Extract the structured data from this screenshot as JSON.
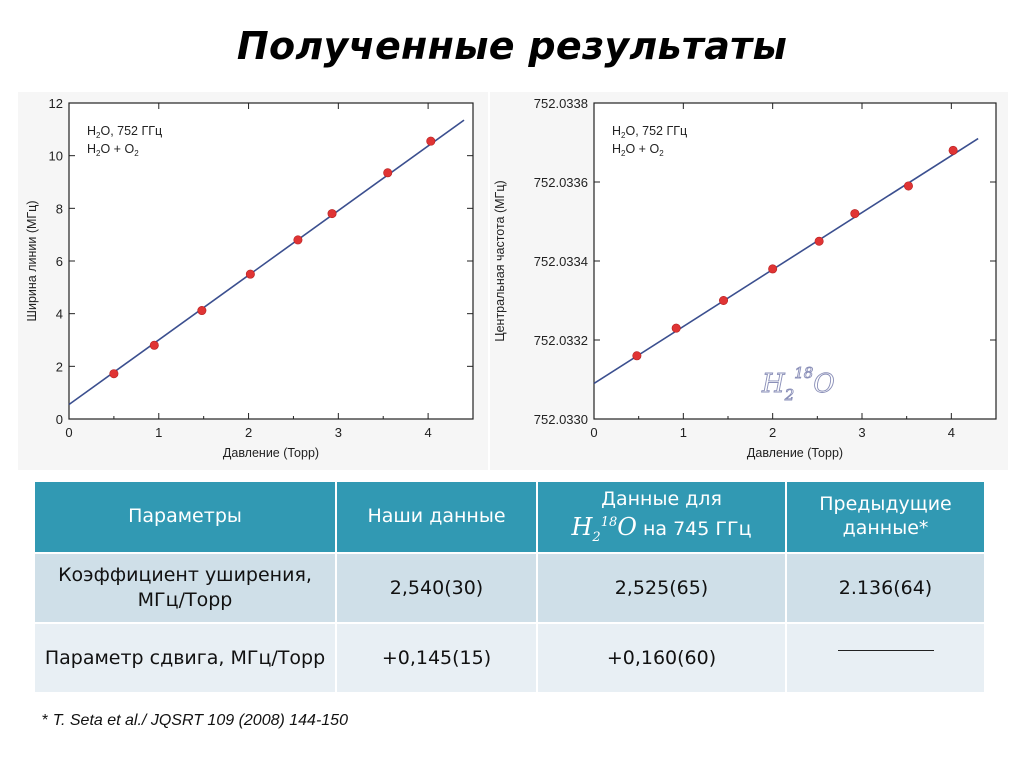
{
  "slide": {
    "title": "Полученные результаты",
    "footnote_mark": "*",
    "footnote_text": "T. Seta et al./ JQSRT 109 (2008) 144-150"
  },
  "colors": {
    "points": "#e03434",
    "fit_line": "#3b4f8f",
    "error_bars": "#3b4f8f",
    "table_header": "#3199b3",
    "row_a": "#cfdfe8",
    "row_b": "#e8eff4"
  },
  "chart_data": [
    {
      "type": "scatter",
      "title": "",
      "xlabel": "Давление  (Торр)",
      "ylabel": "Ширина линии  (МГц)",
      "xlim": [
        0,
        4.5
      ],
      "ylim": [
        0,
        12
      ],
      "xticks": [
        0,
        1,
        2,
        3,
        4
      ],
      "yticks": [
        0,
        2,
        4,
        6,
        8,
        10,
        12
      ],
      "ytick_labels": [
        "0",
        "2",
        "4",
        "6",
        "8",
        "10",
        "12"
      ],
      "legend": [
        "H",
        "2",
        "O, 752 ГГц",
        "H",
        "2",
        "O + O",
        "2"
      ],
      "legend_position": "top-left",
      "grid": false,
      "series": [
        {
          "x": [
            0.5,
            0.95,
            1.48,
            2.02,
            2.55,
            2.93,
            3.55,
            4.03
          ],
          "y": [
            1.72,
            2.8,
            4.12,
            5.5,
            6.8,
            7.8,
            9.35,
            10.55
          ]
        }
      ],
      "fit": {
        "x": [
          0,
          4.4
        ],
        "y": [
          0.55,
          11.35
        ]
      }
    },
    {
      "type": "scatter",
      "title": "",
      "xlabel": "Давление  (Торр)",
      "ylabel": "Центральная частота  (МГц)",
      "xlim": [
        0,
        4.5
      ],
      "ylim": [
        752.033,
        752.0338
      ],
      "xticks": [
        0,
        1,
        2,
        3,
        4
      ],
      "yticks": [
        752.033,
        752.0332,
        752.0334,
        752.0336,
        752.0338
      ],
      "ytick_labels": [
        "752.0330",
        "752.0332",
        "752.0334",
        "752.0336",
        "752.0338"
      ],
      "legend": [
        "H",
        "2",
        "O, 752 ГГц",
        "H",
        "2",
        "O + O",
        "2"
      ],
      "legend_position": "top-left",
      "annotation": [
        "H",
        "2",
        "18",
        "O"
      ],
      "grid": false,
      "series": [
        {
          "x": [
            0.48,
            0.92,
            1.45,
            2.0,
            2.52,
            2.92,
            3.52,
            4.02
          ],
          "y": [
            752.03316,
            752.03323,
            752.0333,
            752.03338,
            752.03345,
            752.03352,
            752.03359,
            752.03368
          ],
          "err": [
            2e-06,
            2e-06,
            2e-06,
            2e-06,
            2e-06,
            3e-06,
            3e-06,
            7e-06
          ]
        }
      ],
      "fit": {
        "x": [
          0,
          4.3
        ],
        "y": [
          752.03309,
          752.03371
        ]
      }
    }
  ],
  "table": {
    "headers": {
      "col1": "Параметры",
      "col2": "Наши данные",
      "col3_top": "Данные для",
      "col3_iso": [
        "H",
        "2",
        "18",
        "O"
      ],
      "col3_bottom": "на 745 ГГц",
      "col4": "Предыдущие данные*"
    },
    "rows": [
      {
        "param": "Коэффициент уширения, МГц/Торр",
        "ours": "2,540(30)",
        "iso": "2,525(65)",
        "prev": "2.136(64)"
      },
      {
        "param": "Параметр сдвига, МГц/Торр",
        "ours": "+0,145(15)",
        "iso": "+0,160(60)",
        "prev": ""
      }
    ]
  }
}
